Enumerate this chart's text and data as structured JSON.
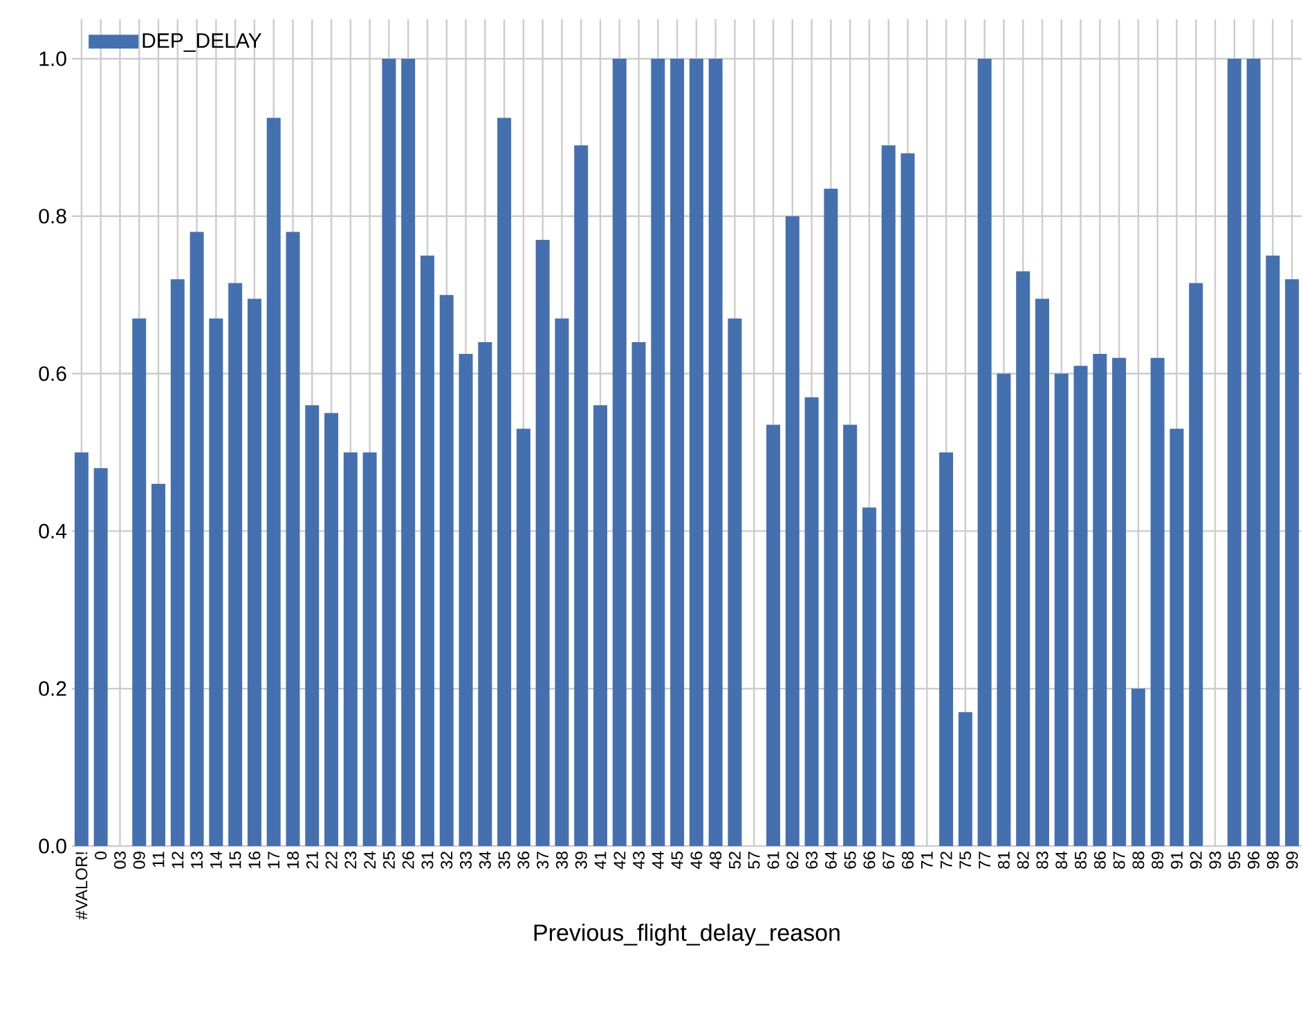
{
  "chart_data": {
    "type": "bar",
    "xlabel": "Previous_flight_delay_reason",
    "categories": [
      "#VALOR!",
      "0",
      "03",
      "09",
      "11",
      "12",
      "13",
      "14",
      "15",
      "16",
      "17",
      "18",
      "21",
      "22",
      "23",
      "24",
      "25",
      "26",
      "31",
      "32",
      "33",
      "34",
      "35",
      "36",
      "37",
      "38",
      "39",
      "41",
      "42",
      "43",
      "44",
      "45",
      "46",
      "48",
      "52",
      "57",
      "61",
      "62",
      "63",
      "64",
      "65",
      "66",
      "67",
      "68",
      "71",
      "72",
      "75",
      "77",
      "81",
      "82",
      "83",
      "84",
      "85",
      "86",
      "87",
      "88",
      "89",
      "91",
      "92",
      "93",
      "95",
      "96",
      "98",
      "99"
    ],
    "series": [
      {
        "name": "DEP_DELAY",
        "color": "#4470b0",
        "values": [
          0.5,
          0.48,
          null,
          0.67,
          0.46,
          0.72,
          0.78,
          0.67,
          0.715,
          0.695,
          0.925,
          0.78,
          0.56,
          0.55,
          0.5,
          0.5,
          1.0,
          1.0,
          0.75,
          0.7,
          0.625,
          0.64,
          0.925,
          0.53,
          0.77,
          0.67,
          0.89,
          0.56,
          1.0,
          0.64,
          1.0,
          1.0,
          1.0,
          1.0,
          0.67,
          null,
          0.535,
          0.8,
          0.57,
          0.835,
          0.535,
          0.43,
          0.89,
          0.88,
          null,
          0.5,
          0.17,
          1.0,
          0.6,
          0.73,
          0.695,
          0.6,
          0.61,
          0.625,
          0.62,
          0.2,
          0.62,
          0.53,
          0.715,
          null,
          1.0,
          1.0,
          0.75,
          0.72
        ]
      }
    ],
    "ylim": [
      0,
      1.05
    ],
    "yticks": [
      {
        "value": 0,
        "label": "0.0"
      },
      {
        "value": 0.2,
        "label": "0.2"
      },
      {
        "value": 0.4,
        "label": "0.4"
      },
      {
        "value": 0.6,
        "label": "0.6"
      },
      {
        "value": 0.8,
        "label": "0.8"
      },
      {
        "value": 1.0,
        "label": "1.0"
      }
    ],
    "grid": true,
    "legend": "top left"
  }
}
